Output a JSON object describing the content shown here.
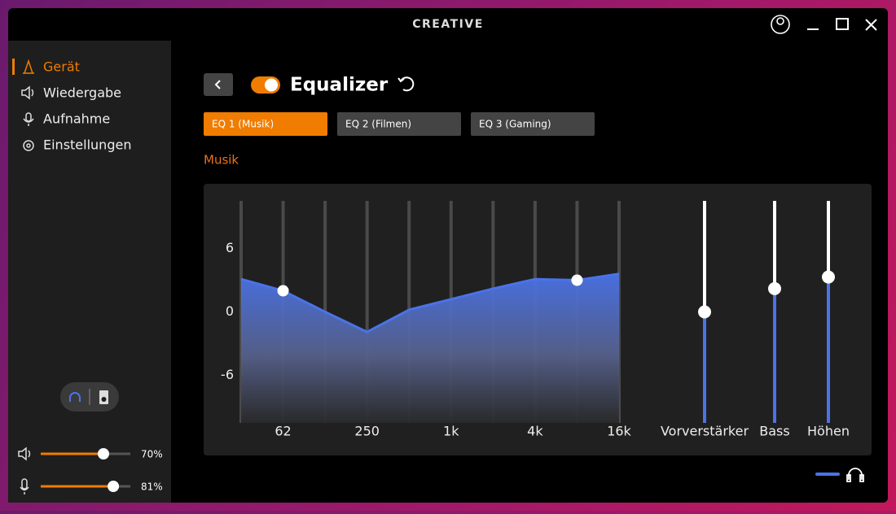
{
  "window": {
    "brand": "CREATIVE"
  },
  "nav": [
    "Gerät",
    "Wiedergabe",
    "Aufnahme",
    "Einstellungen"
  ],
  "levels": [
    {
      "value": 70,
      "label": "70%"
    },
    {
      "value": 81,
      "label": "81%"
    }
  ],
  "header": {
    "title": "Equalizer"
  },
  "presets": [
    "EQ 1 (Musik)",
    "EQ 2 (Filmen)",
    "EQ 3 (Gaming)"
  ],
  "preset_name": "Musik",
  "equalizer": {
    "bands": [
      null,
      "62",
      null,
      "250",
      null,
      "1k",
      null,
      "4k",
      null,
      "16k"
    ],
    "values": [
      3.1,
      2.0,
      0,
      -1.9,
      0.2,
      1.2,
      2.2,
      3.1,
      3.0,
      3.6
    ],
    "ylim": [
      -10.5,
      10.5
    ],
    "yticks": [
      6,
      0,
      -6
    ],
    "color": "#4a73e8"
  },
  "controls": [
    {
      "name": "Vorverstärker",
      "value": 0
    },
    {
      "name": "Bass",
      "value": 2.2
    },
    {
      "name": "Höhen",
      "value": 3.3
    }
  ]
}
